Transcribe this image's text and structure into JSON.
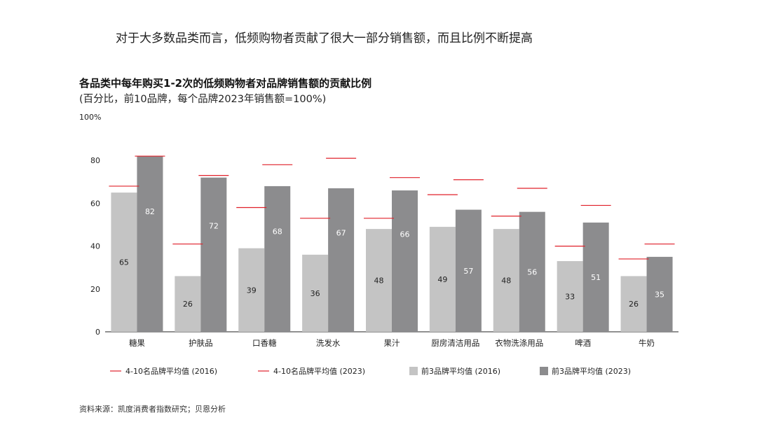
{
  "headline": "对于大多数品类而言，低频购物者贡献了很大一部分销售额，而且比例不断提高",
  "source": "资料来源：凯度消费者指数研究；贝恩分析",
  "colors": {
    "bar_2016": "#c4c4c4",
    "bar_2023": "#8c8c8e",
    "marker": "#e0202a"
  },
  "chart_data": {
    "type": "bar",
    "title": "各品类中每年购买1-2次的低频购物者对品牌销售额的贡献比例",
    "subtitle": "(百分比，前10品牌，每个品牌2023年销售额=100%)",
    "ylabel": "100%",
    "ylim": [
      0,
      100
    ],
    "yticks": [
      0,
      20,
      40,
      60,
      80
    ],
    "grid": false,
    "legend_position": "bottom",
    "categories": [
      "糖果",
      "护肤品",
      "口香糖",
      "洗发水",
      "果汁",
      "厨房清洁用品",
      "衣物洗涤用品",
      "啤酒",
      "牛奶"
    ],
    "series": [
      {
        "name": "前3品牌平均值 (2016)",
        "kind": "bar",
        "values": [
          65,
          26,
          39,
          36,
          48,
          49,
          48,
          33,
          26
        ]
      },
      {
        "name": "前3品牌平均值 (2023)",
        "kind": "bar",
        "values": [
          82,
          72,
          68,
          67,
          66,
          57,
          56,
          51,
          35
        ]
      },
      {
        "name": "4-10名品牌平均值 (2016)",
        "kind": "marker",
        "values": [
          68,
          41,
          58,
          53,
          53,
          64,
          54,
          40,
          34
        ]
      },
      {
        "name": "4-10名品牌平均值 (2023)",
        "kind": "marker",
        "values": [
          82,
          73,
          78,
          81,
          72,
          71,
          67,
          59,
          41
        ]
      }
    ]
  }
}
